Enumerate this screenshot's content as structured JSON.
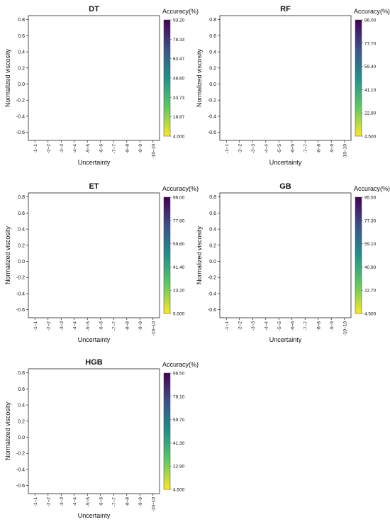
{
  "figure": {
    "colormap": [
      "#fde725",
      "#5ec962",
      "#21918c",
      "#3b528b",
      "#440154"
    ]
  },
  "chart_data": [
    {
      "type": "heatmap",
      "title": "DT",
      "xlabel": "Uncertainty",
      "ylabel": "Normalized viscosity",
      "colorbar_label": "Accuracy(%)",
      "colorbar_ticks": [
        "93.20",
        "78.33",
        "63.47",
        "48.60",
        "33.73",
        "18.87",
        "4.000"
      ],
      "colorbar_range": [
        4.0,
        93.2
      ],
      "categories": [
        "-1~1",
        "-2~2",
        "-3~3",
        "-4~4",
        "-5~5",
        "-6~6",
        "-7~7",
        "-8~8",
        "-9~9",
        "-10~10"
      ],
      "y_ticks": [
        "0.8",
        "0.6",
        "0.4",
        "0.2",
        "0.0",
        "-0.2",
        "-0.4",
        "-0.6"
      ],
      "ylim": [
        -0.7,
        0.85
      ],
      "grid": false
    },
    {
      "type": "heatmap",
      "title": "RF",
      "xlabel": "Uncertainty",
      "ylabel": "Normalized viscosity",
      "colorbar_label": "Accuracy(%)",
      "colorbar_ticks": [
        "96.00",
        "77.70",
        "59.40",
        "41.10",
        "22.80",
        "4.500"
      ],
      "colorbar_range": [
        4.5,
        96.0
      ],
      "categories": [
        "-1~1",
        "-2~2",
        "-3~3",
        "-4~4",
        "-5~5",
        "-6~6",
        "-7~7",
        "-8~8",
        "-9~9",
        "-10~10"
      ],
      "y_ticks": [
        "0.8",
        "0.6",
        "0.4",
        "0.2",
        "0.0",
        "-0.2",
        "-0.4",
        "-0.6"
      ],
      "ylim": [
        -0.7,
        0.85
      ],
      "grid": false
    },
    {
      "type": "heatmap",
      "title": "ET",
      "xlabel": "Uncertainty",
      "ylabel": "Normalized viscosity",
      "colorbar_label": "Accuracy(%)",
      "colorbar_ticks": [
        "96.00",
        "77.80",
        "59.60",
        "41.40",
        "23.20",
        "5.000"
      ],
      "colorbar_range": [
        5.0,
        96.0
      ],
      "categories": [
        "-1~1",
        "-2~2",
        "-3~3",
        "-4~4",
        "-5~5",
        "-6~6",
        "-7~7",
        "-8~8",
        "-9~9",
        "-10~10"
      ],
      "y_ticks": [
        "0.8",
        "0.6",
        "0.4",
        "0.2",
        "0.0",
        "-0.2",
        "-0.4",
        "-0.6"
      ],
      "ylim": [
        -0.7,
        0.85
      ],
      "grid": false
    },
    {
      "type": "heatmap",
      "title": "GB",
      "xlabel": "Uncertainty",
      "ylabel": "Normalized viscosity",
      "colorbar_label": "Accuracy(%)",
      "colorbar_ticks": [
        "95.50",
        "77.30",
        "59.10",
        "40.90",
        "22.70",
        "4.500"
      ],
      "colorbar_range": [
        4.5,
        95.5
      ],
      "categories": [
        "-1~1",
        "-2~2",
        "-3~3",
        "-4~4",
        "-5~5",
        "-6~6",
        "-7~7",
        "-8~8",
        "-9~9",
        "-10~10"
      ],
      "y_ticks": [
        "0.8",
        "0.6",
        "0.4",
        "0.2",
        "0.0",
        "-0.2",
        "-0.4",
        "-0.6"
      ],
      "ylim": [
        -0.7,
        0.85
      ],
      "grid": false
    },
    {
      "type": "heatmap",
      "title": "HGB",
      "xlabel": "Uncertainty",
      "ylabel": "Normalized viscosity",
      "colorbar_label": "Accuracy(%)",
      "colorbar_ticks": [
        "96.50",
        "78.10",
        "59.70",
        "41.30",
        "22.90",
        "4.500"
      ],
      "colorbar_range": [
        4.5,
        96.5
      ],
      "categories": [
        "-1~1",
        "-2~2",
        "-3~3",
        "-4~4",
        "-5~5",
        "-6~6",
        "-7~7",
        "-8~8",
        "-9~9",
        "-10~10"
      ],
      "y_ticks": [
        "0.8",
        "0.6",
        "0.4",
        "0.2",
        "0.0",
        "-0.2",
        "-0.4",
        "-0.6"
      ],
      "ylim": [
        -0.7,
        0.85
      ],
      "grid": false
    }
  ]
}
